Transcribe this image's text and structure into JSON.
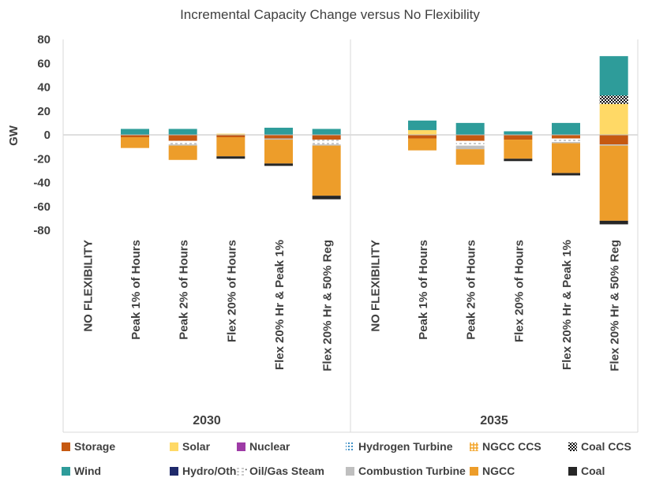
{
  "chart_data": {
    "type": "stacked-bar",
    "title": "Incremental Capacity Change versus No Flexibility",
    "ylabel": "GW",
    "xlabel": "",
    "ylim": [
      -80,
      80
    ],
    "yticks": [
      80,
      60,
      40,
      20,
      0,
      -20,
      -40,
      -60,
      -80
    ],
    "grid": false,
    "groups": [
      {
        "name": "2030",
        "categories": [
          "NO FLEXIBILITY",
          "Peak 1% of Hours",
          "Peak 2% of Hours",
          "Flex 20% of Hours",
          "Flex 20% Hr & Peak 1%",
          "Flex 20% Hr & 50% Reg"
        ]
      },
      {
        "name": "2035",
        "categories": [
          "NO FLEXIBILITY",
          "Peak 1% of Hours",
          "Peak 2% of Hours",
          "Flex 20% of Hours",
          "Flex 20% Hr & Peak 1%",
          "Flex 20% Hr & 50% Reg"
        ]
      }
    ],
    "series": [
      {
        "name": "Storage",
        "color": "#C65911",
        "pattern": "solid",
        "values": [
          0,
          -2,
          -5,
          -2,
          -3,
          -4,
          0,
          -3,
          -5,
          -4,
          -3,
          -8
        ]
      },
      {
        "name": "Solar",
        "color": "#FFD966",
        "pattern": "solid",
        "values": [
          0,
          0,
          0,
          1,
          0,
          0,
          0,
          4,
          0,
          0,
          0,
          26
        ]
      },
      {
        "name": "Nuclear",
        "color": "#9E3BA6",
        "pattern": "solid",
        "values": [
          0,
          0,
          0,
          0,
          0,
          0,
          0,
          0,
          0,
          0,
          0,
          0
        ]
      },
      {
        "name": "Hydrogen Turbine",
        "color": "#2E86C1",
        "pattern": "dots",
        "values": [
          0,
          0,
          0,
          0,
          0,
          0,
          0,
          0,
          0,
          0,
          0,
          0
        ]
      },
      {
        "name": "NGCC CCS",
        "color": "#F4A52A",
        "pattern": "hatch",
        "values": [
          0,
          0,
          0,
          0,
          0,
          0,
          0,
          0,
          0,
          0,
          0,
          0
        ]
      },
      {
        "name": "Coal CCS",
        "color": "#000000",
        "pattern": "check",
        "values": [
          0,
          0,
          0,
          0,
          0,
          0,
          0,
          0,
          0,
          0,
          0,
          7
        ]
      },
      {
        "name": "Wind",
        "color": "#2E9C9A",
        "pattern": "solid",
        "values": [
          0,
          5,
          5,
          0,
          6,
          5,
          0,
          8,
          10,
          3,
          10,
          33
        ]
      },
      {
        "name": "Hydro/Other",
        "color": "#1F2A6B",
        "pattern": "solid",
        "values": [
          0,
          0,
          0,
          0,
          0,
          0,
          0,
          0,
          0,
          0,
          0,
          0
        ]
      },
      {
        "name": "Oil/Gas Steam",
        "color": "#A6A6A6",
        "pattern": "dash",
        "values": [
          0,
          0,
          -3,
          0,
          0,
          -4,
          0,
          0,
          -4,
          0,
          -3,
          0
        ]
      },
      {
        "name": "Combustion Turbine",
        "color": "#BFBFBF",
        "pattern": "solid",
        "values": [
          0,
          0,
          -1,
          0,
          -1,
          -1,
          0,
          0,
          -3,
          0,
          -1,
          -1
        ]
      },
      {
        "name": "NGCC",
        "color": "#ED9D2A",
        "pattern": "solid",
        "values": [
          0,
          -9,
          -12,
          -16,
          -20,
          -42,
          0,
          -10,
          -13,
          -16,
          -25,
          -63
        ]
      },
      {
        "name": "Coal",
        "color": "#262626",
        "pattern": "solid",
        "values": [
          0,
          0,
          0,
          -2,
          -2,
          -3,
          0,
          0,
          0,
          -2,
          -2,
          -3
        ]
      }
    ],
    "legend_position": "bottom",
    "legend_order": [
      "Storage",
      "Solar",
      "Nuclear",
      "Hydrogen Turbine",
      "NGCC CCS",
      "Coal CCS",
      "Wind",
      "Hydro/Other",
      "Oil/Gas Steam",
      "Combustion Turbine",
      "NGCC",
      "Coal"
    ]
  }
}
